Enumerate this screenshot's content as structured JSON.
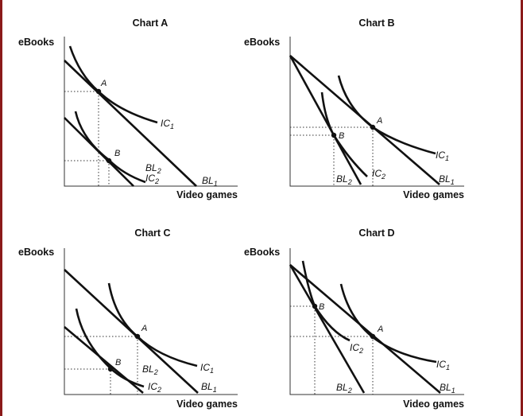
{
  "charts": [
    {
      "title": "Chart A",
      "ylabel": "eBooks",
      "xlabel": "Video games",
      "points": [
        "A",
        "B"
      ],
      "budget_lines": [
        "BL1",
        "BL2"
      ],
      "indifference_curves": [
        "IC1",
        "IC2"
      ]
    },
    {
      "title": "Chart B",
      "ylabel": "eBooks",
      "xlabel": "Video games",
      "points": [
        "A",
        "B"
      ],
      "budget_lines": [
        "BL1",
        "BL2"
      ],
      "indifference_curves": [
        "IC1",
        "IC2"
      ]
    },
    {
      "title": "Chart C",
      "ylabel": "eBooks",
      "xlabel": "Video games",
      "points": [
        "A",
        "B"
      ],
      "budget_lines": [
        "BL1",
        "BL2"
      ],
      "indifference_curves": [
        "IC1",
        "IC2"
      ]
    },
    {
      "title": "Chart D",
      "ylabel": "eBooks",
      "xlabel": "Video games",
      "points": [
        "A",
        "B"
      ],
      "budget_lines": [
        "BL1",
        "BL2"
      ],
      "indifference_curves": [
        "IC1",
        "IC2"
      ]
    }
  ],
  "colors": {
    "frame": "#8b1a1a",
    "ink": "#111111"
  }
}
